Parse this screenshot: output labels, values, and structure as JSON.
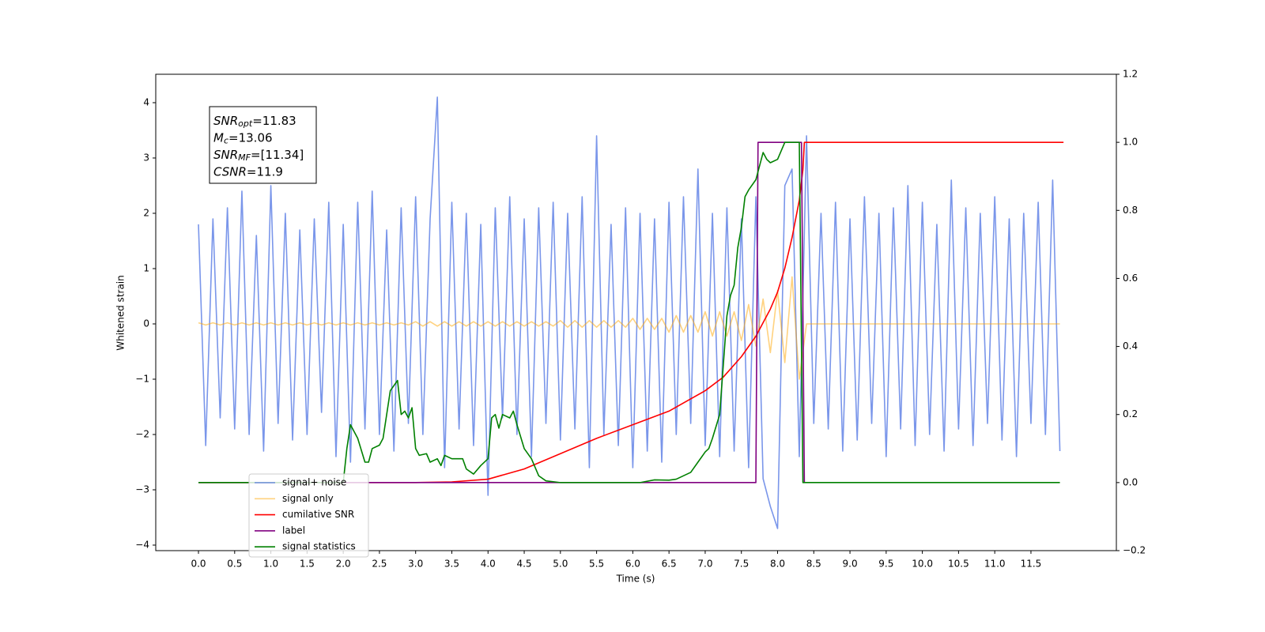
{
  "chart_data": {
    "type": "line",
    "xlabel": "Time (s)",
    "ylabel": "Whitened strain",
    "xlim": [
      -0.59,
      12.68
    ],
    "ylim": [
      -4.1,
      4.514
    ],
    "y2lim": [
      -0.2,
      1.2
    ],
    "xticks": [
      {
        "value": 0,
        "label": "0.0"
      },
      {
        "value": 0.5,
        "label": "0.5"
      },
      {
        "value": 1,
        "label": "1.0"
      },
      {
        "value": 1.5,
        "label": "1.5"
      },
      {
        "value": 2,
        "label": "2.0"
      },
      {
        "value": 2.5,
        "label": "2.5"
      },
      {
        "value": 3,
        "label": "3.0"
      },
      {
        "value": 3.5,
        "label": "3.5"
      },
      {
        "value": 4,
        "label": "4.0"
      },
      {
        "value": 4.5,
        "label": "4.5"
      },
      {
        "value": 5,
        "label": "5.0"
      },
      {
        "value": 5.5,
        "label": "5.5"
      },
      {
        "value": 6,
        "label": "6.0"
      },
      {
        "value": 6.5,
        "label": "6.5"
      },
      {
        "value": 7,
        "label": "7.0"
      },
      {
        "value": 7.5,
        "label": "7.5"
      },
      {
        "value": 8,
        "label": "8.0"
      },
      {
        "value": 8.5,
        "label": "8.5"
      },
      {
        "value": 9,
        "label": "9.0"
      },
      {
        "value": 9.5,
        "label": "9.5"
      },
      {
        "value": 10,
        "label": "10.0"
      },
      {
        "value": 10.5,
        "label": "10.5"
      },
      {
        "value": 11,
        "label": "11.0"
      },
      {
        "value": 11.5,
        "label": "11.5"
      }
    ],
    "yticks": [
      {
        "value": -4,
        "label": "−4"
      },
      {
        "value": -3,
        "label": "−3"
      },
      {
        "value": -2,
        "label": "−2"
      },
      {
        "value": -1,
        "label": "−1"
      },
      0,
      1,
      2,
      3,
      4
    ],
    "y2ticks": [
      {
        "value": -0.2,
        "label": "−0.2"
      },
      {
        "value": 0,
        "label": "0.0"
      },
      {
        "value": 0.2,
        "label": "0.2"
      },
      {
        "value": 0.4,
        "label": "0.4"
      },
      {
        "value": 0.6,
        "label": "0.6"
      },
      {
        "value": 0.8,
        "label": "0.8"
      },
      {
        "value": 1,
        "label": "1.0"
      },
      {
        "value": 1.2,
        "label": "1.2"
      }
    ],
    "grid": false,
    "legend": "lower left",
    "annotation": [
      {
        "text": "SNR",
        "sub": "opt",
        "rest": "=11.83"
      },
      {
        "text": "M",
        "sub": "c",
        "rest": "=13.06"
      },
      {
        "text": "SNR",
        "sub": "MF",
        "rest": "=[11.34]"
      },
      {
        "text": "CSNR",
        "rest": "=11.9"
      }
    ],
    "series": [
      {
        "name": "signal+ noise",
        "color": "#4169e1",
        "alpha": 0.7,
        "x": [
          0,
          0.1,
          0.2,
          0.3,
          0.4,
          0.5,
          0.6,
          0.7,
          0.8,
          0.9,
          1,
          1.1,
          1.2,
          1.3,
          1.4,
          1.5,
          1.6,
          1.7,
          1.8,
          1.9,
          2,
          2.1,
          2.2,
          2.3,
          2.4,
          2.5,
          2.6,
          2.7,
          2.8,
          2.9,
          3,
          3.1,
          3.2,
          3.3,
          3.4,
          3.5,
          3.6,
          3.7,
          3.8,
          3.9,
          4,
          4.1,
          4.2,
          4.3,
          4.4,
          4.5,
          4.6,
          4.7,
          4.8,
          4.9,
          5,
          5.1,
          5.2,
          5.3,
          5.4,
          5.5,
          5.6,
          5.7,
          5.8,
          5.9,
          6,
          6.1,
          6.2,
          6.3,
          6.4,
          6.5,
          6.6,
          6.7,
          6.8,
          6.9,
          7,
          7.1,
          7.2,
          7.3,
          7.4,
          7.5,
          7.6,
          7.7,
          7.8,
          7.9,
          8,
          8.1,
          8.2,
          8.3,
          8.4,
          8.5,
          8.6,
          8.7,
          8.8,
          8.9,
          9,
          9.1,
          9.2,
          9.3,
          9.4,
          9.5,
          9.6,
          9.7,
          9.8,
          9.9,
          10,
          10.1,
          10.2,
          10.3,
          10.4,
          10.5,
          10.6,
          10.7,
          10.8,
          10.9,
          11,
          11.1,
          11.2,
          11.3,
          11.4,
          11.5,
          11.6,
          11.7,
          11.8,
          11.9
        ],
        "values": [
          1.8,
          -2.2,
          1.9,
          -1.7,
          2.1,
          -1.9,
          2.4,
          -2.0,
          1.6,
          -2.3,
          2.5,
          -1.8,
          2.0,
          -2.1,
          1.7,
          -2.0,
          1.9,
          -1.6,
          2.2,
          -2.4,
          1.8,
          -2.5,
          2.2,
          -1.9,
          2.4,
          -2.0,
          1.7,
          -2.3,
          2.1,
          -1.8,
          2.3,
          -2.0,
          1.9,
          4.1,
          -2.6,
          2.2,
          -1.9,
          2.0,
          -2.2,
          1.8,
          -3.1,
          2.1,
          -1.7,
          2.3,
          -2.0,
          1.9,
          -2.4,
          2.1,
          -1.8,
          2.2,
          -2.1,
          2.0,
          -1.9,
          2.3,
          -2.6,
          3.4,
          -2.0,
          1.8,
          -2.2,
          2.1,
          -2.6,
          2.0,
          -2.3,
          1.9,
          -2.5,
          2.2,
          -2.0,
          2.3,
          -1.8,
          2.8,
          -2.2,
          2.0,
          -2.4,
          2.1,
          -2.3,
          1.9,
          -2.6,
          2.3,
          -2.8,
          -3.3,
          -3.7,
          2.5,
          2.8,
          -2.4,
          3.4,
          -1.8,
          2.0,
          -1.9,
          2.2,
          -2.3,
          1.9,
          -2.1,
          2.3,
          -1.8,
          2.0,
          -2.4,
          2.1,
          -1.9,
          2.5,
          -2.2,
          2.2,
          -2.0,
          1.8,
          -2.3,
          2.6,
          -1.9,
          2.1,
          -2.2,
          2.0,
          -1.8,
          2.3,
          -2.1,
          1.9,
          -2.4,
          2.0,
          -1.8,
          2.2,
          -2.0,
          2.6,
          -2.3
        ]
      },
      {
        "name": "signal only",
        "color": "#ffa500",
        "alpha": 0.5,
        "x": [
          0,
          0.1,
          0.2,
          0.3,
          0.4,
          0.5,
          0.6,
          0.7,
          0.8,
          0.9,
          1,
          1.1,
          1.2,
          1.3,
          1.4,
          1.5,
          1.6,
          1.7,
          1.8,
          1.9,
          2,
          2.1,
          2.2,
          2.3,
          2.4,
          2.5,
          2.6,
          2.7,
          2.8,
          2.9,
          3,
          3.1,
          3.2,
          3.3,
          3.4,
          3.5,
          3.6,
          3.7,
          3.8,
          3.9,
          4,
          4.1,
          4.2,
          4.3,
          4.4,
          4.5,
          4.6,
          4.7,
          4.8,
          4.9,
          5,
          5.1,
          5.2,
          5.3,
          5.4,
          5.5,
          5.6,
          5.7,
          5.8,
          5.9,
          6,
          6.1,
          6.2,
          6.3,
          6.4,
          6.5,
          6.6,
          6.7,
          6.8,
          6.9,
          7,
          7.1,
          7.2,
          7.3,
          7.4,
          7.5,
          7.6,
          7.7,
          7.8,
          7.9,
          8,
          8.1,
          8.2,
          8.3,
          8.4,
          8.5,
          8.6,
          8.7,
          8.8,
          8.9,
          9,
          9.1,
          9.2,
          9.3,
          9.4,
          9.5,
          9.6,
          9.7,
          9.8,
          9.9,
          10,
          10.1,
          10.2,
          10.3,
          10.4,
          10.5,
          10.6,
          10.7,
          10.8,
          10.9,
          11,
          11.1,
          11.2,
          11.3,
          11.4,
          11.5,
          11.6,
          11.7,
          11.8,
          11.9
        ],
        "values": [
          0.02,
          -0.02,
          0.02,
          -0.02,
          0.02,
          -0.02,
          0.02,
          -0.02,
          0.02,
          -0.02,
          0.02,
          -0.02,
          0.02,
          -0.02,
          0.02,
          -0.02,
          0.02,
          -0.02,
          0.02,
          -0.02,
          0.02,
          -0.02,
          0.02,
          -0.02,
          0.02,
          -0.02,
          0.02,
          -0.02,
          0.02,
          -0.02,
          0.04,
          -0.04,
          0.04,
          -0.04,
          0.04,
          -0.04,
          0.04,
          -0.04,
          0.04,
          -0.04,
          0.04,
          -0.04,
          0.04,
          -0.04,
          0.04,
          -0.04,
          0.04,
          -0.04,
          0.04,
          -0.04,
          0.06,
          -0.06,
          0.06,
          -0.06,
          0.06,
          -0.06,
          0.06,
          -0.06,
          0.06,
          -0.06,
          0.1,
          -0.1,
          0.1,
          -0.1,
          0.1,
          -0.15,
          0.15,
          -0.15,
          0.15,
          -0.15,
          0.22,
          -0.22,
          0.22,
          -0.22,
          0.22,
          -0.3,
          0.35,
          -0.4,
          0.45,
          -0.52,
          0.6,
          -0.7,
          0.85,
          -1.0,
          0,
          0,
          0,
          0,
          0,
          0,
          0,
          0,
          0,
          0,
          0,
          0,
          0,
          0,
          0,
          0,
          0,
          0,
          0,
          0,
          0,
          0,
          0,
          0,
          0,
          0,
          0,
          0,
          0,
          0,
          0,
          0,
          0,
          0,
          0,
          0
        ]
      },
      {
        "name": "cumilative SNR",
        "color": "#ff0000",
        "axis": "y2",
        "x": [
          0,
          3.0,
          3.5,
          4.0,
          4.5,
          5.0,
          5.5,
          6.0,
          6.5,
          7.0,
          7.25,
          7.5,
          7.7,
          7.9,
          8.0,
          8.1,
          8.2,
          8.3,
          8.35,
          8.37,
          11.95
        ],
        "values": [
          0,
          0,
          0.002,
          0.01,
          0.04,
          0.085,
          0.13,
          0.17,
          0.21,
          0.27,
          0.31,
          0.37,
          0.43,
          0.51,
          0.56,
          0.63,
          0.72,
          0.83,
          0.92,
          1.0,
          1.0
        ]
      },
      {
        "name": "label",
        "color": "#800080",
        "axis": "y2",
        "x": [
          0,
          7.7,
          7.73,
          8.33,
          8.37
        ],
        "values": [
          0,
          0,
          1,
          1,
          0
        ]
      },
      {
        "name": "signal statistics",
        "color": "#008000",
        "axis": "y2",
        "x": [
          0,
          2.0,
          2.05,
          2.1,
          2.2,
          2.3,
          2.35,
          2.4,
          2.5,
          2.55,
          2.65,
          2.75,
          2.8,
          2.85,
          2.9,
          2.95,
          3.0,
          3.05,
          3.15,
          3.2,
          3.3,
          3.35,
          3.4,
          3.5,
          3.65,
          3.7,
          3.8,
          3.9,
          4.0,
          4.05,
          4.1,
          4.15,
          4.2,
          4.3,
          4.35,
          4.4,
          4.5,
          4.6,
          4.7,
          4.8,
          5.0,
          6.1,
          6.3,
          6.5,
          6.6,
          6.8,
          6.9,
          7.0,
          7.05,
          7.1,
          7.2,
          7.3,
          7.35,
          7.4,
          7.45,
          7.5,
          7.55,
          7.6,
          7.7,
          7.8,
          7.85,
          7.9,
          8.0,
          8.1,
          8.3,
          8.35,
          11.9
        ],
        "values": [
          0,
          0,
          0.1,
          0.17,
          0.13,
          0.06,
          0.06,
          0.1,
          0.11,
          0.13,
          0.27,
          0.3,
          0.2,
          0.21,
          0.19,
          0.22,
          0.1,
          0.08,
          0.085,
          0.06,
          0.07,
          0.05,
          0.08,
          0.07,
          0.07,
          0.04,
          0.025,
          0.05,
          0.07,
          0.19,
          0.2,
          0.16,
          0.2,
          0.19,
          0.21,
          0.17,
          0.1,
          0.07,
          0.02,
          0.005,
          0,
          0,
          0.008,
          0.007,
          0.01,
          0.03,
          0.06,
          0.09,
          0.1,
          0.13,
          0.2,
          0.49,
          0.55,
          0.58,
          0.69,
          0.75,
          0.84,
          0.86,
          0.89,
          0.97,
          0.95,
          0.94,
          0.95,
          1.0,
          1.0,
          0,
          0
        ]
      }
    ]
  }
}
